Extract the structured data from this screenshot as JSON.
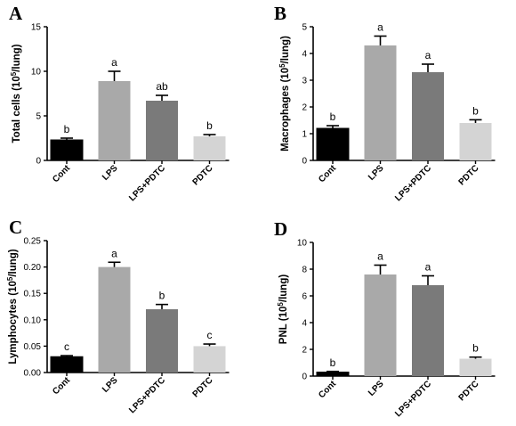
{
  "chart_data": [
    {
      "panel": "A",
      "type": "bar",
      "ylabel": "Total cells (10",
      "ylabel_sup": "5",
      "ylabel_tail": "/lung)",
      "categories": [
        "Cont",
        "LPS",
        "LPS+PDTC",
        "PDTC"
      ],
      "values": [
        2.3,
        8.9,
        6.7,
        2.7
      ],
      "errors": [
        0.2,
        1.1,
        0.6,
        0.2
      ],
      "letters": [
        "b",
        "a",
        "ab",
        "b"
      ],
      "ylim": [
        0,
        15
      ],
      "yticks": [
        0,
        5,
        10,
        15
      ],
      "ytick_labels": [
        "0",
        "5",
        "10",
        "15"
      ],
      "colors": [
        "#000000",
        "#a9a9a9",
        "#7a7a7a",
        "#d4d4d4"
      ],
      "grid": false,
      "legend": "none"
    },
    {
      "panel": "B",
      "type": "bar",
      "ylabel": "Macrophages (10",
      "ylabel_sup": "5",
      "ylabel_tail": "/lung)",
      "categories": [
        "Cont",
        "LPS",
        "LPS+PDTC",
        "PDTC"
      ],
      "values": [
        1.2,
        4.3,
        3.3,
        1.4
      ],
      "errors": [
        0.1,
        0.35,
        0.3,
        0.12
      ],
      "letters": [
        "b",
        "a",
        "a",
        "b"
      ],
      "ylim": [
        0,
        5
      ],
      "yticks": [
        0,
        1,
        2,
        3,
        4,
        5
      ],
      "ytick_labels": [
        "0",
        "1",
        "2",
        "3",
        "4",
        "5"
      ],
      "colors": [
        "#000000",
        "#a9a9a9",
        "#7a7a7a",
        "#d4d4d4"
      ],
      "grid": false,
      "legend": "none"
    },
    {
      "panel": "C",
      "type": "bar",
      "ylabel": "Lymphocytes (10",
      "ylabel_sup": "5",
      "ylabel_tail": "/lung)",
      "categories": [
        "Cont",
        "LPS",
        "LPS+PDTC",
        "PDTC"
      ],
      "values": [
        0.03,
        0.2,
        0.12,
        0.05
      ],
      "errors": [
        0.002,
        0.009,
        0.009,
        0.004
      ],
      "letters": [
        "c",
        "a",
        "b",
        "c"
      ],
      "ylim": [
        0,
        0.25
      ],
      "yticks": [
        0,
        0.05,
        0.1,
        0.15,
        0.2,
        0.25
      ],
      "ytick_labels": [
        "0.00",
        "0.05",
        "0.10",
        "0.15",
        "0.20",
        "0.25"
      ],
      "colors": [
        "#000000",
        "#a9a9a9",
        "#7a7a7a",
        "#d4d4d4"
      ],
      "grid": false,
      "legend": "none"
    },
    {
      "panel": "D",
      "type": "bar",
      "ylabel": "PNL (10",
      "ylabel_sup": "5",
      "ylabel_tail": "/lung)",
      "categories": [
        "Cont",
        "LPS",
        "LPS+PDTC",
        "PDTC"
      ],
      "values": [
        0.3,
        7.6,
        6.8,
        1.3
      ],
      "errors": [
        0.05,
        0.7,
        0.7,
        0.12
      ],
      "letters": [
        "b",
        "a",
        "a",
        "b"
      ],
      "ylim": [
        0,
        10
      ],
      "yticks": [
        0,
        2,
        4,
        6,
        8,
        10
      ],
      "ytick_labels": [
        "0",
        "2",
        "4",
        "6",
        "8",
        "10"
      ],
      "colors": [
        "#000000",
        "#a9a9a9",
        "#7a7a7a",
        "#d4d4d4"
      ],
      "grid": false,
      "legend": "none"
    }
  ]
}
